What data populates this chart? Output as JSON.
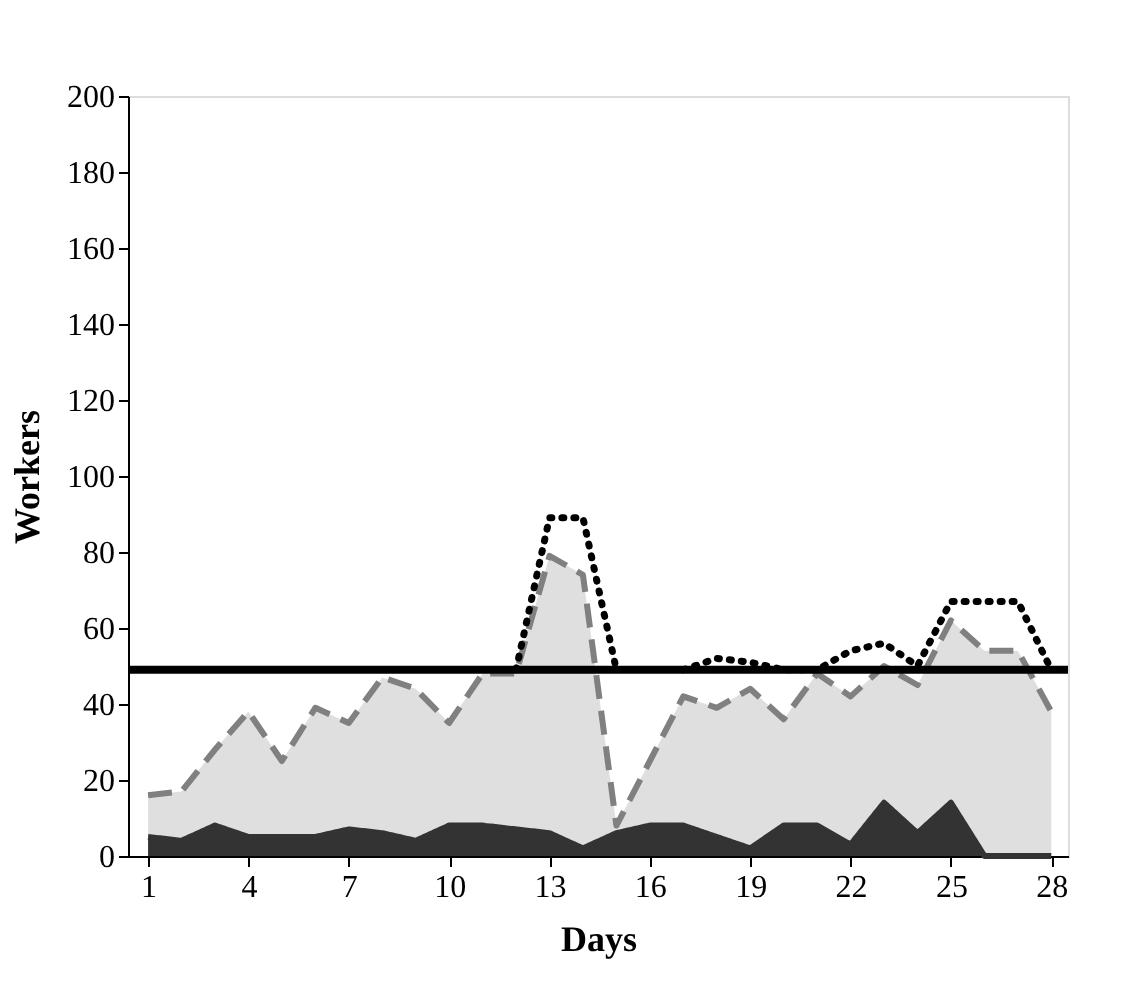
{
  "chart_data": {
    "type": "area",
    "xlabel": "Days",
    "ylabel": "Workers",
    "x": [
      1,
      2,
      3,
      4,
      5,
      6,
      7,
      8,
      9,
      10,
      11,
      12,
      13,
      14,
      15,
      16,
      17,
      18,
      19,
      20,
      21,
      22,
      23,
      24,
      25,
      26,
      27,
      28
    ],
    "series": [
      {
        "color": "#808080",
        "line_style": "dashed",
        "values": [
          16,
          17,
          28,
          38,
          25,
          39,
          35,
          47,
          44,
          35,
          48,
          48,
          79,
          74,
          8,
          25,
          42,
          39,
          44,
          36,
          48,
          42,
          50,
          45,
          62,
          54,
          54,
          38
        ]
      },
      {
        "color": "#333333",
        "line_style": "solid",
        "values": [
          5,
          4,
          8,
          5,
          5,
          5,
          7,
          6,
          4,
          8,
          8,
          7,
          6,
          2,
          6,
          8,
          8,
          5,
          2,
          8,
          8,
          3,
          14,
          6,
          14,
          0,
          0,
          0
        ]
      },
      {
        "type": "line",
        "color": "#000000",
        "line_style": "dotted",
        "values": [
          null,
          null,
          null,
          null,
          null,
          null,
          null,
          null,
          null,
          null,
          null,
          49,
          89,
          89,
          49,
          null,
          49,
          52,
          51,
          49,
          49,
          54,
          56,
          50,
          67,
          67,
          67,
          49
        ]
      }
    ],
    "ref_lines": [
      {
        "axis": "y",
        "value": 49,
        "color": "#000000",
        "line_style": "solid"
      }
    ],
    "xlim": [
      0.4,
      28.5
    ],
    "xticks": [
      1,
      4,
      7,
      10,
      13,
      16,
      19,
      22,
      25,
      28
    ],
    "ylim": [
      0,
      200
    ],
    "yticks": [
      0,
      20,
      40,
      60,
      80,
      100,
      120,
      140,
      160,
      180,
      200
    ],
    "grid": false
  }
}
